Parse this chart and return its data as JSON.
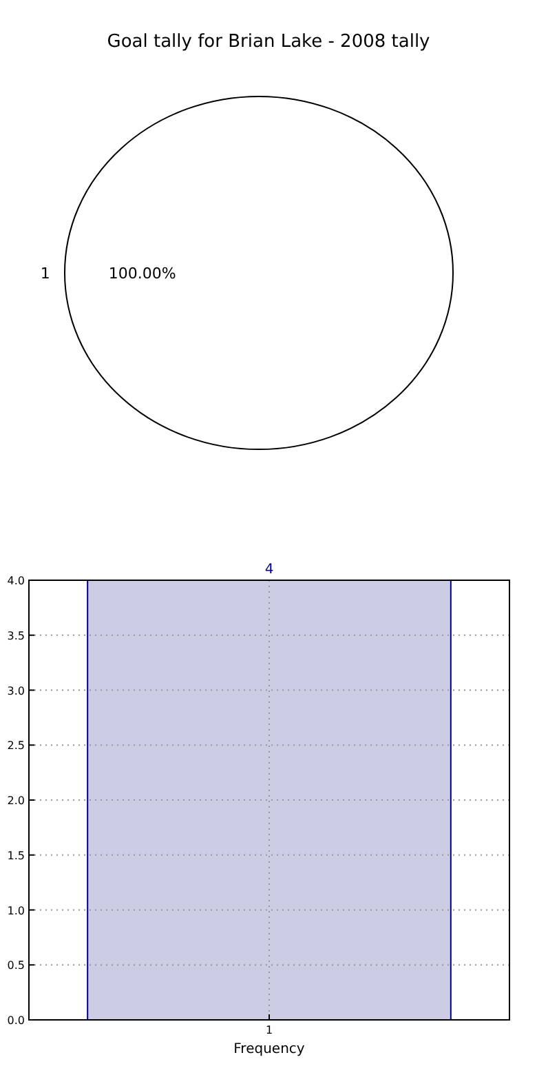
{
  "chart_data": [
    {
      "type": "pie",
      "title": "Goal tally for Brian Lake - 2008 tally",
      "categories": [
        "1"
      ],
      "values": [
        100
      ],
      "colors": [
        "#ffffff"
      ],
      "value_labels": [
        "100.00%"
      ]
    },
    {
      "type": "bar",
      "categories": [
        "1"
      ],
      "values": [
        4
      ],
      "color": "#cccce4",
      "xlabel": "Frequency",
      "ylim": [
        0,
        4
      ],
      "yticks": [
        {
          "value": 0,
          "label": "0.0"
        },
        {
          "value": 0.5,
          "label": "0.5"
        },
        {
          "value": 1,
          "label": "1.0"
        },
        {
          "value": 1.5,
          "label": "1.5"
        },
        {
          "value": 2,
          "label": "2.0"
        },
        {
          "value": 2.5,
          "label": "2.5"
        },
        {
          "value": 3,
          "label": "3.0"
        },
        {
          "value": 3.5,
          "label": "3.5"
        },
        {
          "value": 4,
          "label": "4.0"
        }
      ],
      "grid": true,
      "data_labels": true
    }
  ]
}
